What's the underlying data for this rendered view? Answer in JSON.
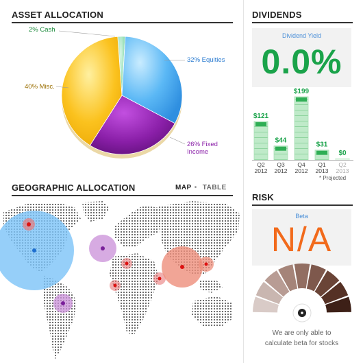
{
  "asset_allocation": {
    "title": "ASSET ALLOCATION",
    "labels": {
      "cash": "2% Cash",
      "equities": "32% Equities",
      "misc": "40% Misc.",
      "fixed_income_line1": "26% Fixed",
      "fixed_income_line2": "Income"
    }
  },
  "chart_data": [
    {
      "type": "pie",
      "title": "ASSET ALLOCATION",
      "slices": [
        {
          "name": "Cash",
          "value": 2,
          "color": "#7fd6a6"
        },
        {
          "name": "Equities",
          "value": 32,
          "color": "#3aa6f0"
        },
        {
          "name": "Fixed Income",
          "value": 26,
          "color": "#8a1fa8"
        },
        {
          "name": "Misc.",
          "value": 40,
          "color": "#f5b400"
        }
      ]
    },
    {
      "type": "bar",
      "title": "DIVIDENDS",
      "categories": [
        "Q2 2012",
        "Q3 2012",
        "Q4 2012",
        "Q1 2013",
        "Q2 2013"
      ],
      "values": [
        121,
        44,
        199,
        31,
        0
      ],
      "projected": [
        false,
        false,
        false,
        false,
        true
      ],
      "color": "#1aa34a"
    }
  ],
  "dividends": {
    "title": "DIVIDENDS",
    "yield_caption": "Dividend Yield",
    "yield_value": "0.0%",
    "bar_labels": [
      "$121",
      "$44",
      "$199",
      "$31",
      "$0"
    ],
    "quarters": [
      "Q2",
      "Q3",
      "Q4",
      "Q1",
      "Q2"
    ],
    "years": [
      "2012",
      "2012",
      "2012",
      "2013",
      "2013"
    ],
    "projected_note": "* Projected"
  },
  "geo": {
    "title": "GEOGRAPHIC ALLOCATION",
    "tab_map": "MAP",
    "tab_sep": "•",
    "tab_table": "TABLE"
  },
  "risk": {
    "title": "RISK",
    "beta_caption": "Beta",
    "beta_value": "N/A",
    "note_line1": "We are only able to",
    "note_line2": "calculate beta for stocks"
  },
  "colors": {
    "accent_green": "#1aa34a",
    "accent_orange": "#f26a1b",
    "accent_blue": "#4a8fd8"
  }
}
